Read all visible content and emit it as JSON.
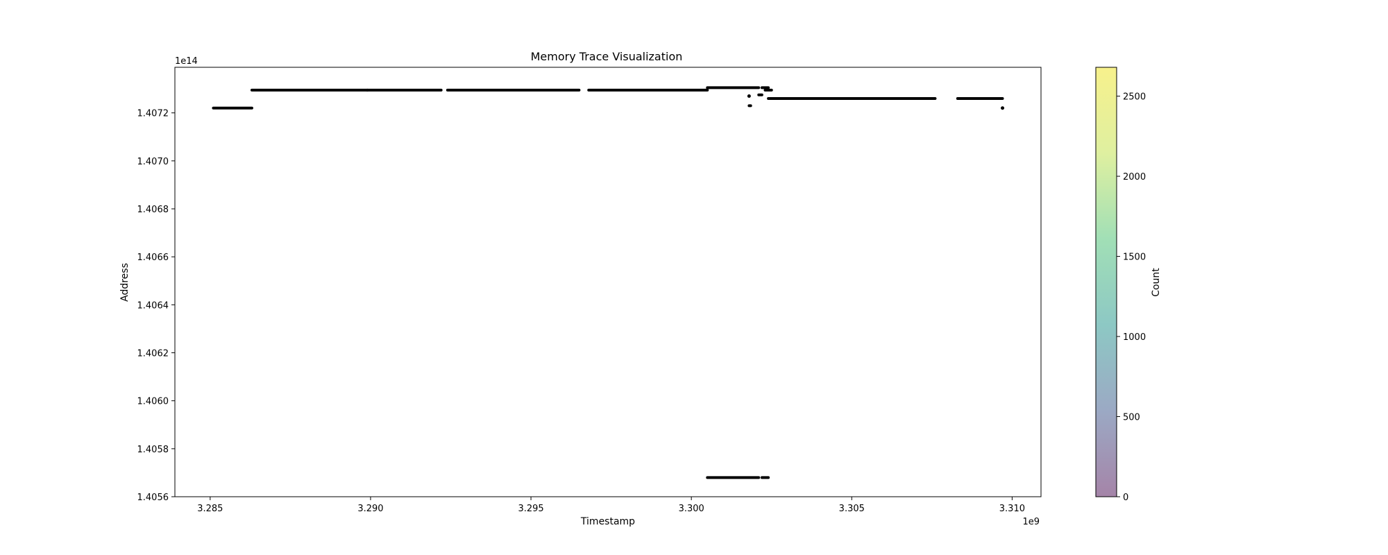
{
  "chart_data": {
    "type": "scatter",
    "title": "Memory Trace Visualization",
    "xlabel": "Timestamp",
    "ylabel": "Address",
    "x_offset_label": "1e9",
    "y_offset_label": "1e14",
    "xlim": [
      3.2839,
      3.3109
    ],
    "ylim": [
      1.4056,
      1.40739
    ],
    "x_ticks": [
      {
        "value": 3.285,
        "label": "3.285"
      },
      {
        "value": 3.29,
        "label": "3.290"
      },
      {
        "value": 3.295,
        "label": "3.295"
      },
      {
        "value": 3.3,
        "label": "3.300"
      },
      {
        "value": 3.305,
        "label": "3.305"
      },
      {
        "value": 3.31,
        "label": "3.310"
      }
    ],
    "y_ticks": [
      {
        "value": 1.4056,
        "label": "1.4056"
      },
      {
        "value": 1.4058,
        "label": "1.4058"
      },
      {
        "value": 1.406,
        "label": "1.4060"
      },
      {
        "value": 1.4062,
        "label": "1.4062"
      },
      {
        "value": 1.4064,
        "label": "1.4064"
      },
      {
        "value": 1.4066,
        "label": "1.4066"
      },
      {
        "value": 1.4068,
        "label": "1.4068"
      },
      {
        "value": 1.407,
        "label": "1.4070"
      },
      {
        "value": 1.4072,
        "label": "1.4072"
      }
    ],
    "segments": [
      {
        "x0": 3.2851,
        "x1": 3.2863,
        "y": 1.40722
      },
      {
        "x0": 3.2863,
        "x1": 3.2899,
        "y": 1.407295
      },
      {
        "x0": 3.2899,
        "x1": 3.2922,
        "y": 1.407295
      },
      {
        "x0": 3.2924,
        "x1": 3.2965,
        "y": 1.407295
      },
      {
        "x0": 3.2968,
        "x1": 3.3005,
        "y": 1.407295
      },
      {
        "x0": 3.3005,
        "x1": 3.3021,
        "y": 1.407305
      },
      {
        "x0": 3.3022,
        "x1": 3.3024,
        "y": 1.407305
      },
      {
        "x0": 3.3023,
        "x1": 3.3025,
        "y": 1.407295
      },
      {
        "x0": 3.3021,
        "x1": 3.3022,
        "y": 1.407275
      },
      {
        "x0": 3.3018,
        "x1": 3.30185,
        "y": 1.40723
      },
      {
        "x0": 3.3024,
        "x1": 3.3076,
        "y": 1.40726
      },
      {
        "x0": 3.3083,
        "x1": 3.3097,
        "y": 1.40726
      },
      {
        "x0": 3.3005,
        "x1": 3.3021,
        "y": 1.40568
      },
      {
        "x0": 3.3022,
        "x1": 3.3024,
        "y": 1.40568
      }
    ],
    "points": [
      {
        "x": 3.3018,
        "y": 1.40727
      },
      {
        "x": 3.3097,
        "y": 1.40722
      }
    ],
    "marker_color": "#000000",
    "colorbar": {
      "label": "Count",
      "min": 0,
      "max": 2680,
      "ticks": [
        {
          "value": 0,
          "label": "0"
        },
        {
          "value": 500,
          "label": "500"
        },
        {
          "value": 1000,
          "label": "1000"
        },
        {
          "value": 1500,
          "label": "1500"
        },
        {
          "value": 2000,
          "label": "2000"
        },
        {
          "value": 2500,
          "label": "2500"
        }
      ],
      "colormap": [
        "#a584a8",
        "#9ba9c4",
        "#8dc8c4",
        "#a1dfb6",
        "#dff0a0",
        "#f7f18c"
      ]
    },
    "grid": false
  }
}
